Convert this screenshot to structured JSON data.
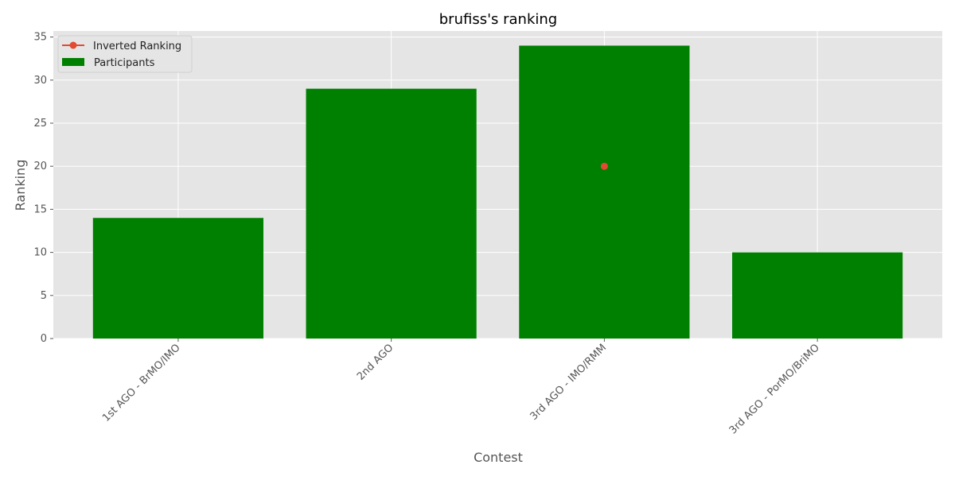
{
  "chart_data": {
    "type": "bar",
    "title": "brufiss's ranking",
    "xlabel": "Contest",
    "ylabel": "Ranking",
    "categories": [
      "1st AGO - BrMO/IMO",
      "2nd AGO",
      "3rd AGO - IMO/RMM",
      "3rd AGO - PorMO/BriMO"
    ],
    "series": [
      {
        "name": "Participants",
        "type": "bar",
        "color": "#008000",
        "values": [
          14,
          29,
          34,
          10
        ]
      },
      {
        "name": "Inverted Ranking",
        "type": "line",
        "marker": "circle",
        "color": "#E24A33",
        "values": [
          null,
          null,
          20,
          null
        ]
      }
    ],
    "ylim": [
      0,
      35.7
    ],
    "yticks": [
      0,
      5,
      10,
      15,
      20,
      25,
      30,
      35
    ],
    "grid": true,
    "background": "#E5E5E5",
    "legend": "top-left"
  }
}
